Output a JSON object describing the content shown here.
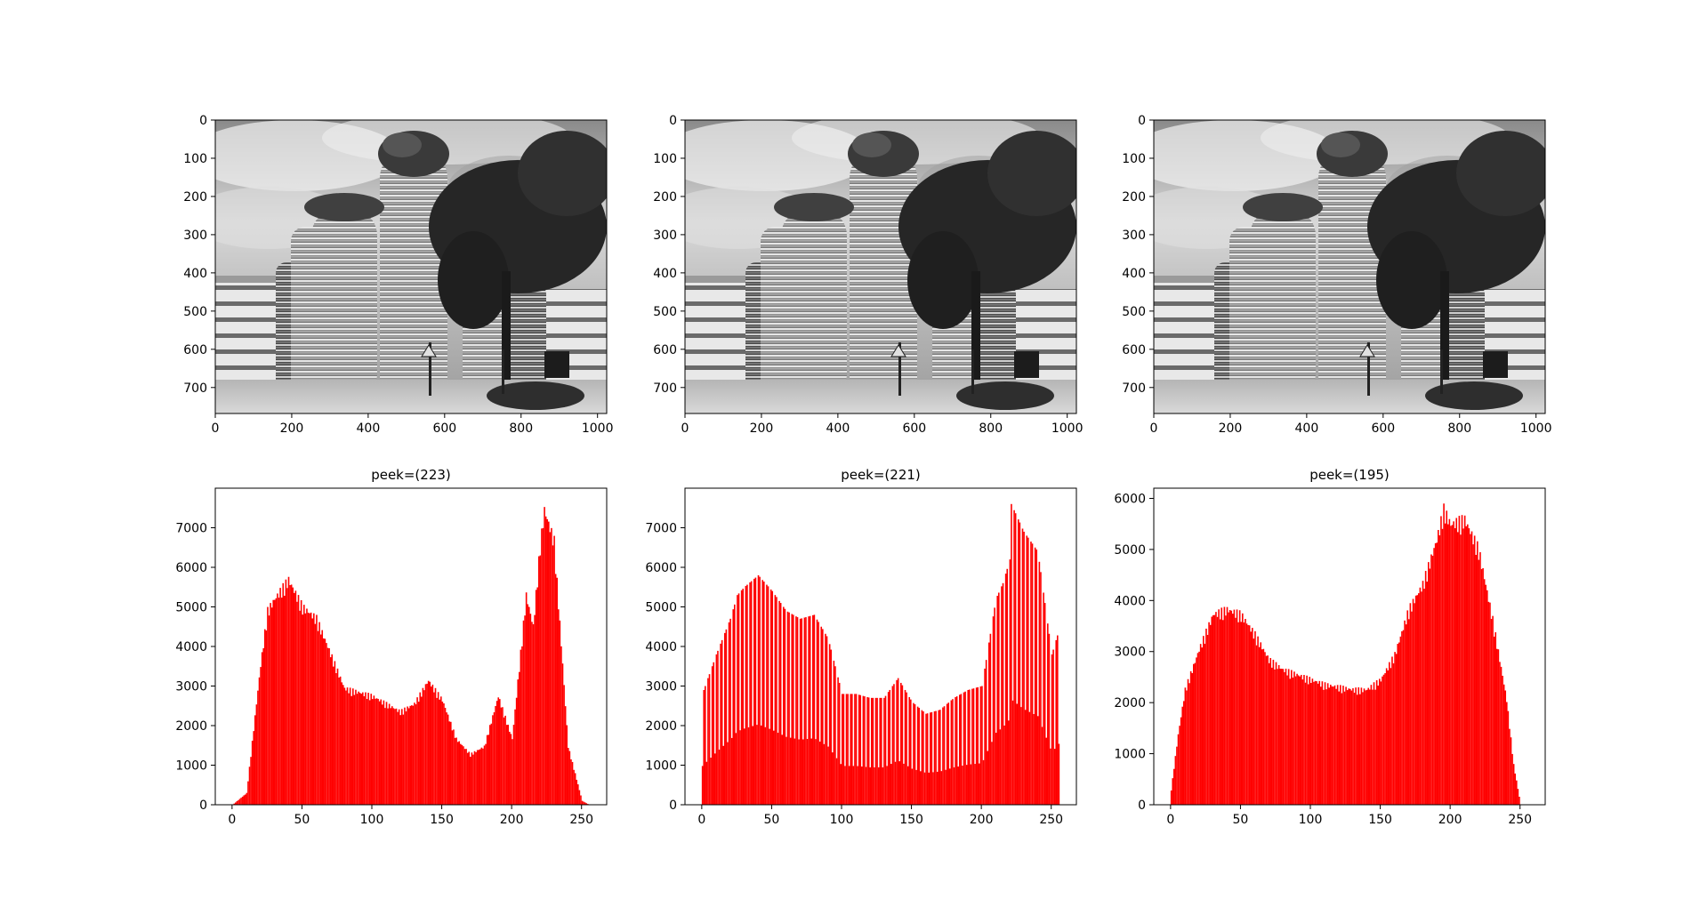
{
  "figure": {
    "image_panels": [
      {
        "xticks": [
          "0",
          "200",
          "400",
          "600",
          "800",
          "1000"
        ],
        "yticks": [
          "0",
          "100",
          "200",
          "300",
          "400",
          "500",
          "600",
          "700"
        ],
        "xlim": [
          0,
          1024
        ],
        "ylim": [
          768,
          0
        ]
      },
      {
        "xticks": [
          "0",
          "200",
          "400",
          "600",
          "800",
          "1000"
        ],
        "yticks": [
          "0",
          "100",
          "200",
          "300",
          "400",
          "500",
          "600",
          "700"
        ],
        "xlim": [
          0,
          1024
        ],
        "ylim": [
          768,
          0
        ]
      },
      {
        "xticks": [
          "0",
          "200",
          "400",
          "600",
          "800",
          "1000"
        ],
        "yticks": [
          "0",
          "100",
          "200",
          "300",
          "400",
          "500",
          "600",
          "700"
        ],
        "xlim": [
          0,
          1024
        ],
        "ylim": [
          768,
          0
        ]
      }
    ]
  },
  "chart_data": [
    {
      "type": "bar",
      "title": "peek=(223)",
      "color": "#ff0000",
      "xlim": [
        -12,
        268
      ],
      "ylim": [
        0,
        8000
      ],
      "xticks": [
        "0",
        "50",
        "100",
        "150",
        "200",
        "250"
      ],
      "yticks": [
        "0",
        "1000",
        "2000",
        "3000",
        "4000",
        "5000",
        "6000",
        "7000"
      ],
      "bins": [
        0,
        10,
        20,
        25,
        30,
        40,
        50,
        60,
        70,
        80,
        90,
        100,
        110,
        120,
        130,
        140,
        150,
        160,
        170,
        180,
        190,
        200,
        210,
        215,
        220,
        223,
        230,
        240,
        250,
        255
      ],
      "counts": [
        0,
        300,
        3600,
        5000,
        5300,
        5800,
        5100,
        4800,
        3900,
        3000,
        2900,
        2800,
        2600,
        2400,
        2600,
        3200,
        2700,
        1700,
        1300,
        1500,
        2800,
        1700,
        5400,
        4600,
        6700,
        7600,
        6800,
        1500,
        100,
        0
      ]
    },
    {
      "type": "bar",
      "title": "peek=(221)",
      "color": "#ff0000",
      "xlim": [
        -12,
        268
      ],
      "ylim": [
        0,
        8000
      ],
      "xticks": [
        "0",
        "50",
        "100",
        "150",
        "200",
        "250"
      ],
      "yticks": [
        "0",
        "1000",
        "2000",
        "3000",
        "4000",
        "5000",
        "6000",
        "7000"
      ],
      "bins": [
        0,
        10,
        20,
        25,
        30,
        40,
        50,
        60,
        70,
        80,
        90,
        100,
        110,
        120,
        130,
        140,
        150,
        160,
        170,
        180,
        190,
        200,
        210,
        215,
        220,
        221,
        230,
        240,
        250,
        255
      ],
      "counts": [
        2800,
        3800,
        4700,
        5300,
        5500,
        5800,
        5400,
        4900,
        4700,
        4800,
        4200,
        2800,
        2800,
        2700,
        2700,
        3200,
        2600,
        2300,
        2400,
        2700,
        2900,
        3000,
        5200,
        5600,
        6200,
        7600,
        6900,
        6400,
        3800,
        4400
      ]
    },
    {
      "type": "bar",
      "title": "peek=(195)",
      "color": "#ff0000",
      "xlim": [
        -12,
        268
      ],
      "ylim": [
        0,
        6200
      ],
      "xticks": [
        "0",
        "50",
        "100",
        "150",
        "200",
        "250"
      ],
      "yticks": [
        "0",
        "1000",
        "2000",
        "3000",
        "4000",
        "5000",
        "6000"
      ],
      "bins": [
        0,
        5,
        10,
        20,
        30,
        40,
        50,
        60,
        70,
        80,
        90,
        100,
        110,
        120,
        130,
        140,
        150,
        160,
        170,
        180,
        190,
        195,
        200,
        210,
        220,
        230,
        240,
        245,
        250
      ],
      "counts": [
        300,
        1400,
        2300,
        3100,
        3800,
        3900,
        3800,
        3400,
        2900,
        2700,
        2600,
        2500,
        2400,
        2350,
        2300,
        2300,
        2500,
        3000,
        3900,
        4400,
        5300,
        5900,
        5600,
        5700,
        5100,
        3700,
        2100,
        800,
        0
      ]
    }
  ]
}
